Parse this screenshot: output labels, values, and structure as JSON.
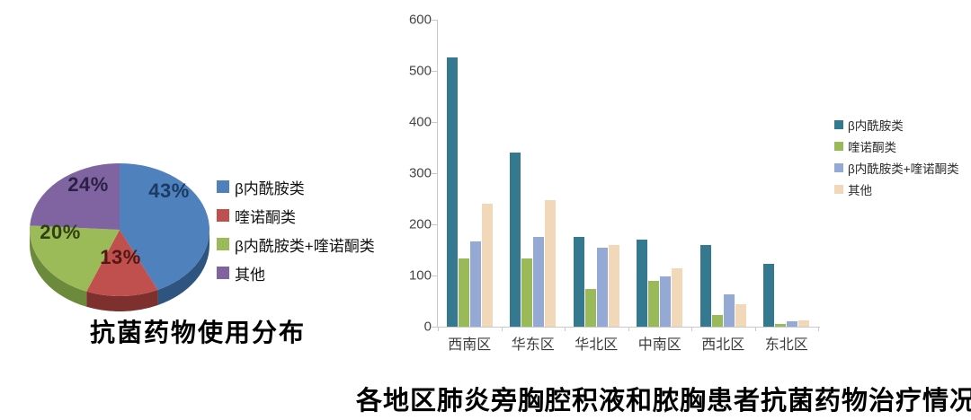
{
  "page": {
    "background": "#FFFFFF"
  },
  "chart_data": [
    {
      "type": "pie",
      "effect": "3d",
      "title": "抗菌药物使用分布",
      "labels": [
        "β内酰胺类",
        "喹诺酮类",
        "β内酰胺类+喹诺酮类",
        "其他"
      ],
      "values": [
        43,
        13,
        20,
        24
      ],
      "value_labels": [
        "43%",
        "13%",
        "20%",
        "24%"
      ],
      "colors": [
        "#4F81BD",
        "#C0504D",
        "#9BBB59",
        "#8064A2"
      ],
      "side_colors": [
        "#2E5580",
        "#7E302E",
        "#6C8A3B",
        "#54406E"
      ],
      "label_colors": [
        "#1B3B63",
        "#511814",
        "#30400F",
        "#2B2144"
      ],
      "legend_position": "right"
    },
    {
      "type": "bar",
      "title": "各地区肺炎旁胸腔积液和脓胸患者抗菌药物治疗情况",
      "categories": [
        "西南区",
        "华东区",
        "华北区",
        "中南区",
        "西北区",
        "东北区"
      ],
      "series": [
        {
          "name": "β内酰胺类",
          "color": "#34798F",
          "values": [
            527,
            340,
            176,
            170,
            160,
            122
          ]
        },
        {
          "name": "喹诺酮类",
          "color": "#9AB958",
          "values": [
            133,
            133,
            73,
            90,
            22,
            6
          ]
        },
        {
          "name": "β内酰胺类+喹诺酮类",
          "color": "#94A9D3",
          "values": [
            166,
            176,
            155,
            98,
            64,
            10
          ]
        },
        {
          "name": "其他",
          "color": "#F1D8B9",
          "values": [
            241,
            247,
            160,
            114,
            44,
            13
          ]
        }
      ],
      "ylim": [
        0,
        600
      ],
      "yticks": [
        0,
        100,
        200,
        300,
        400,
        500,
        600
      ],
      "grid": false,
      "legend_position": "right"
    }
  ]
}
